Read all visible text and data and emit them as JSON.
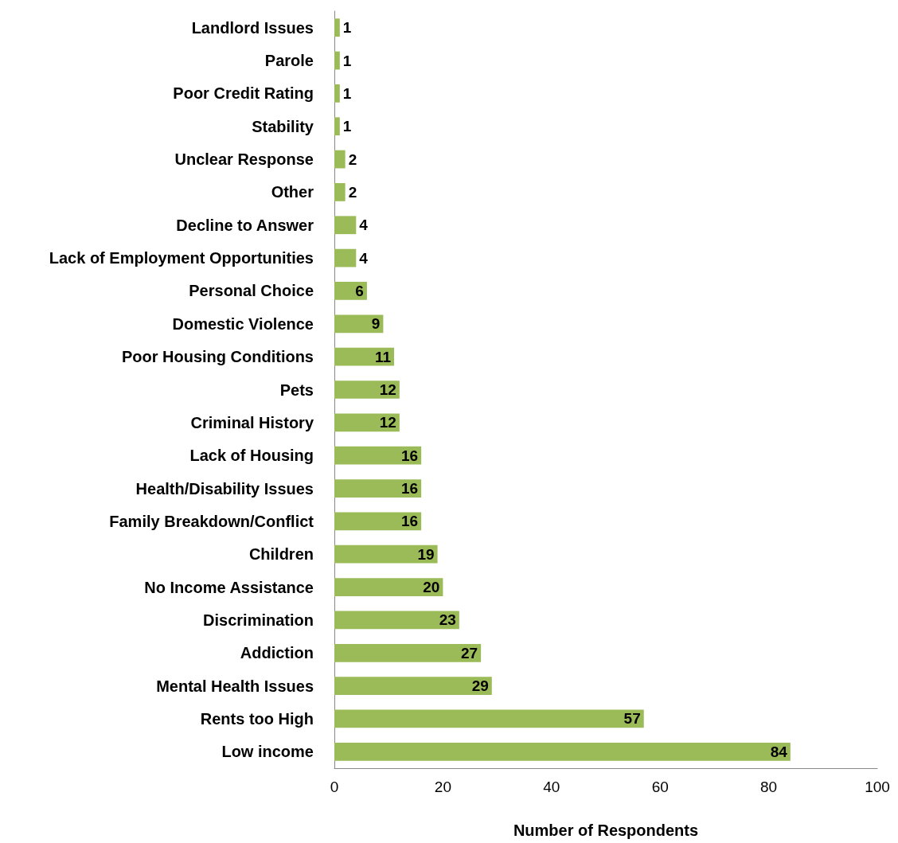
{
  "chart_data": {
    "type": "bar",
    "orientation": "horizontal",
    "xlabel": "Number of Respondents",
    "categories": [
      "Landlord Issues",
      "Parole",
      "Poor Credit Rating",
      "Stability",
      "Unclear Response",
      "Other",
      "Decline to Answer",
      "Lack of Employment Opportunities",
      "Personal Choice",
      "Domestic Violence",
      "Poor Housing Conditions",
      "Pets",
      "Criminal History",
      "Lack of Housing",
      "Health/Disability Issues",
      "Family Breakdown/Conflict",
      "Children",
      "No Income Assistance",
      "Discrimination",
      "Addiction",
      "Mental Health Issues",
      "Rents too High",
      "Low income"
    ],
    "values": [
      1,
      1,
      1,
      1,
      2,
      2,
      4,
      4,
      6,
      9,
      11,
      12,
      12,
      16,
      16,
      16,
      19,
      20,
      23,
      27,
      29,
      57,
      84
    ],
    "color": "#9bbb59",
    "xlim": [
      0,
      100
    ],
    "xticks": [
      0,
      20,
      40,
      60,
      80,
      100
    ],
    "grid": false,
    "data_labels": true
  }
}
